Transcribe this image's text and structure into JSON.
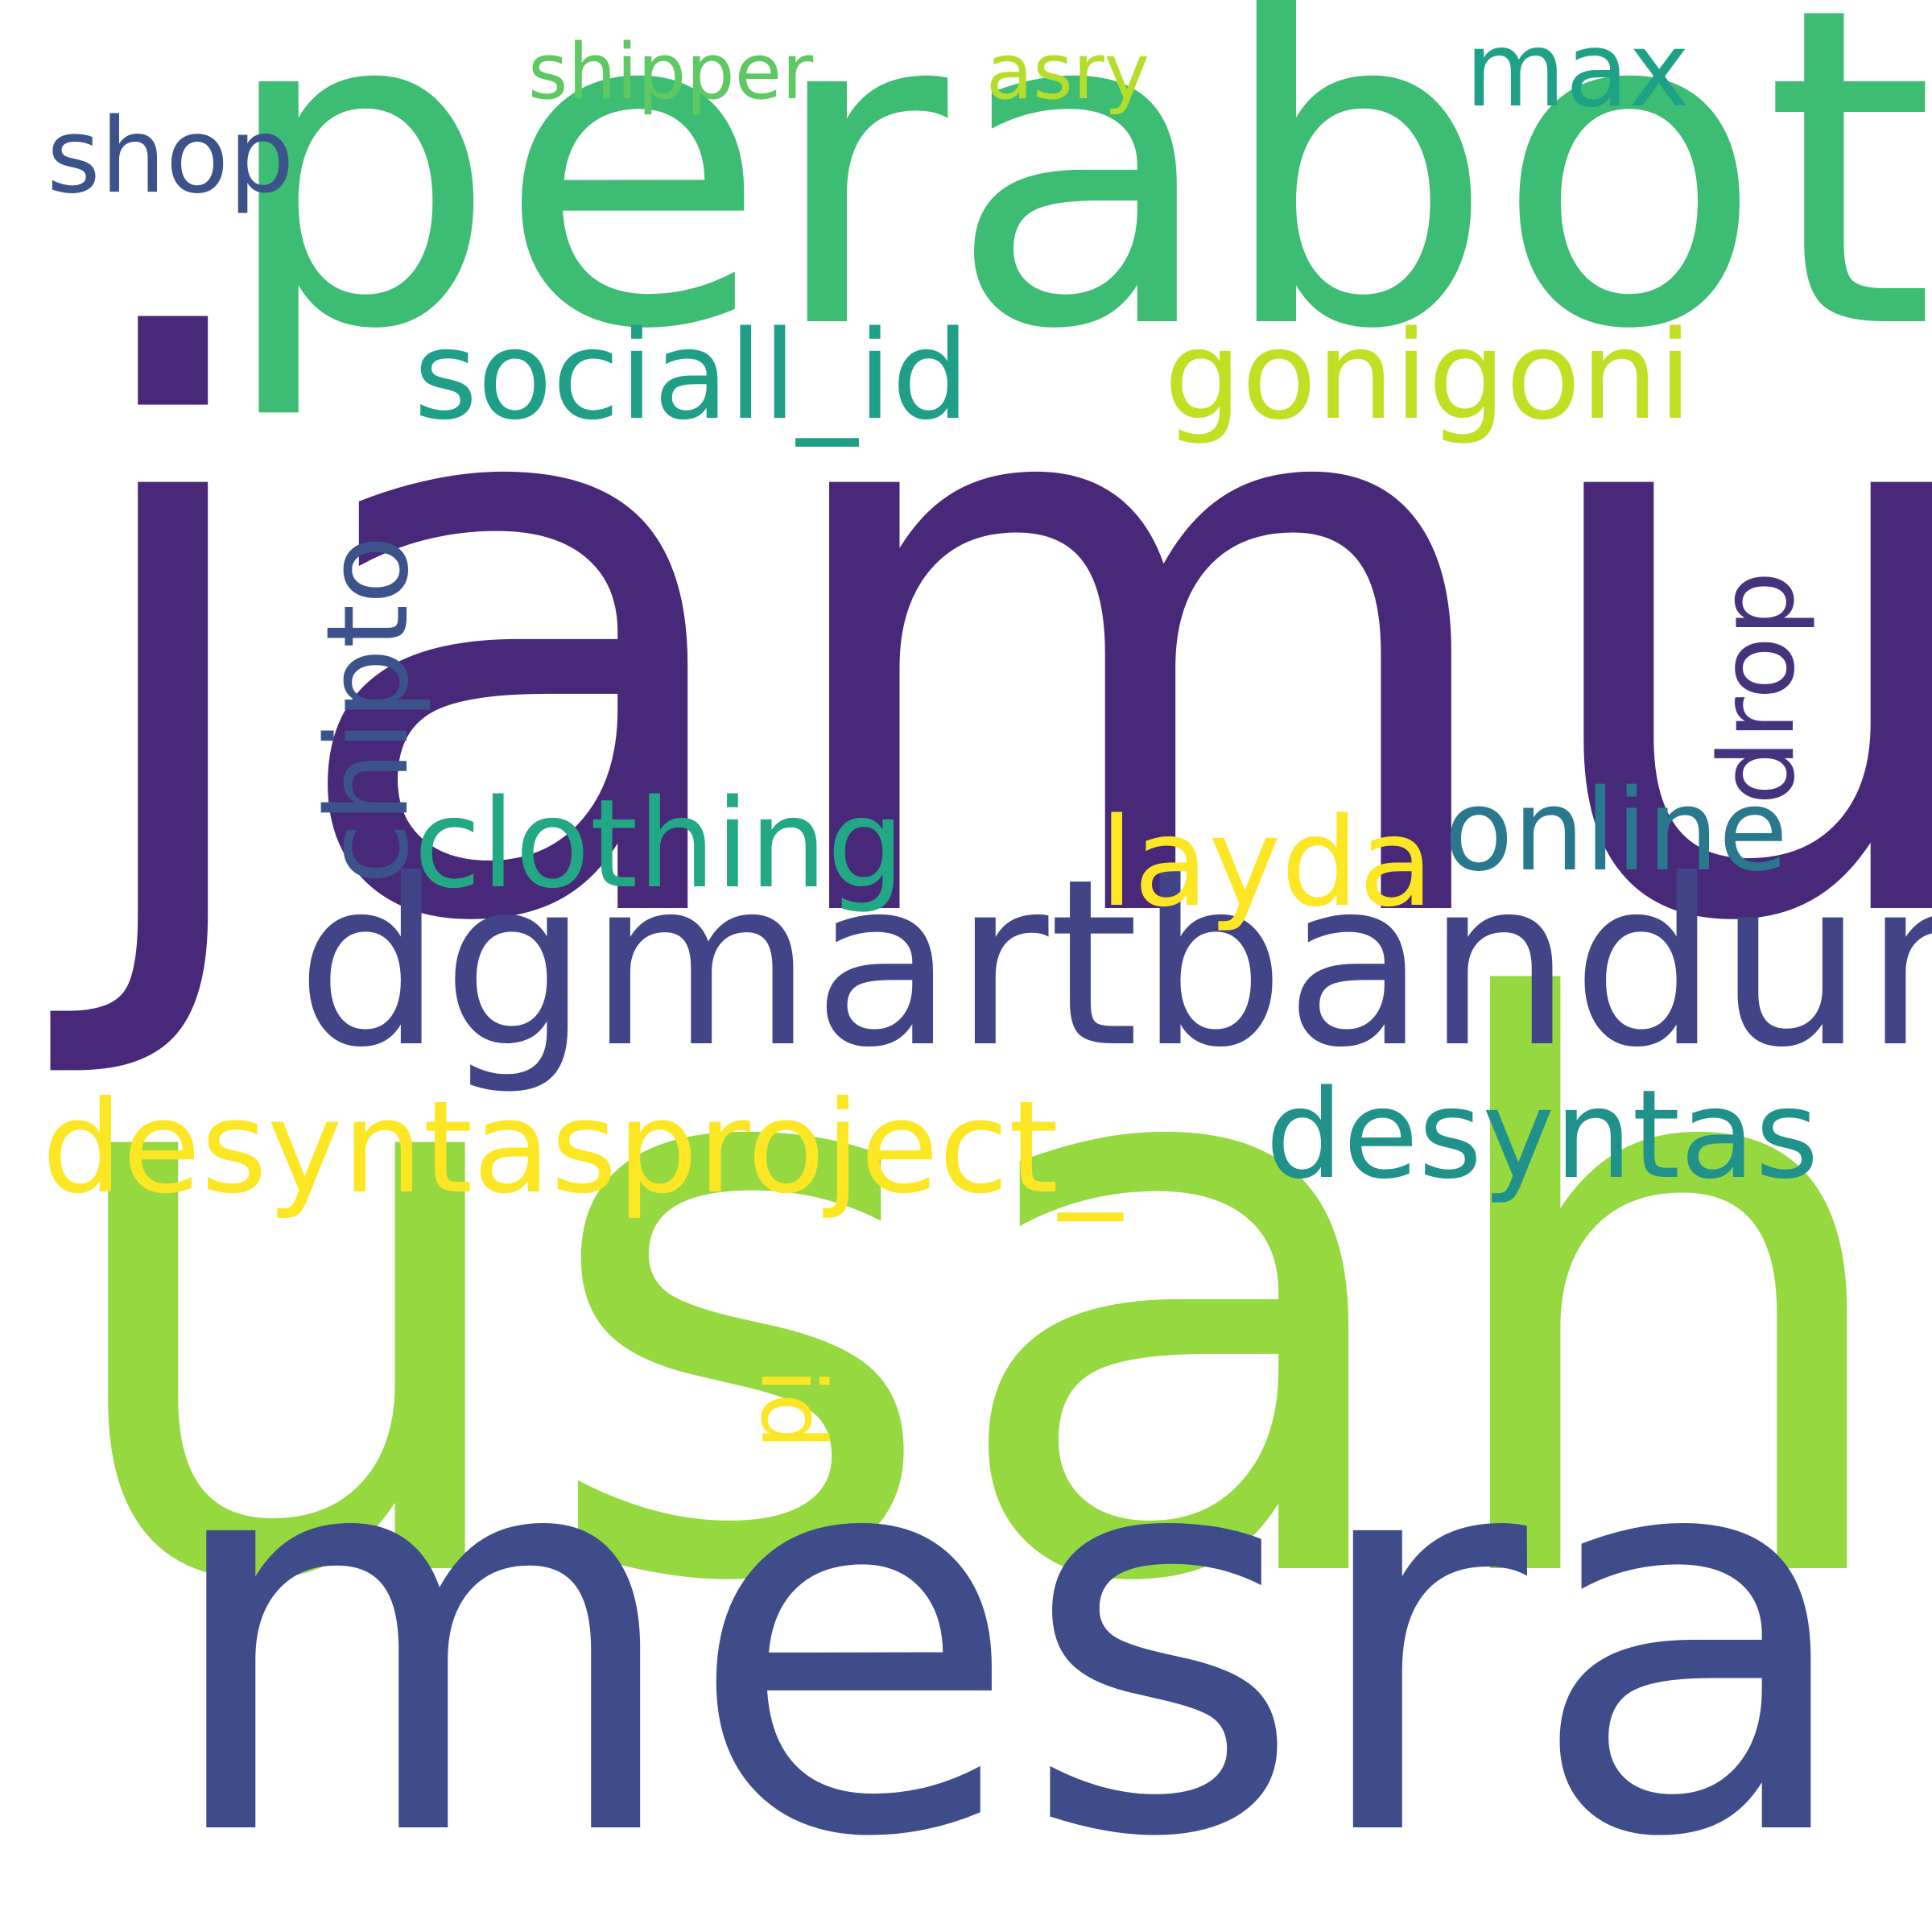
{
  "words": {
    "jamur": {
      "text": "jamur",
      "color": "#482878"
    },
    "perabot": {
      "text": "perabot",
      "color": "#3dbc74"
    },
    "usaha": {
      "text": "usaha",
      "color": "#95d840"
    },
    "mesra": {
      "text": "mesra",
      "color": "#3e4c8a"
    },
    "dgmartbandung": {
      "text": "dgmartbandung",
      "color": "#414487"
    },
    "sociall_id": {
      "text": "sociall_id",
      "color": "#1f9f88"
    },
    "gonigoni": {
      "text": "gonigoni",
      "color": "#c2df23"
    },
    "clothing": {
      "text": "clothing",
      "color": "#22a884"
    },
    "layda": {
      "text": "layda",
      "color": "#fde725"
    },
    "online": {
      "text": "online",
      "color": "#2a788e"
    },
    "desyntasproject": {
      "text": "desyntasproject_",
      "color": "#fde725"
    },
    "desyntas": {
      "text": "desyntas",
      "color": "#21918c"
    },
    "shop": {
      "text": "shop",
      "color": "#3b528b"
    },
    "max": {
      "text": "max",
      "color": "#1fa187"
    },
    "shipper": {
      "text": "shipper",
      "color": "#5ec962"
    },
    "asry": {
      "text": "asry",
      "color": "#b5de2b"
    },
    "chipto": {
      "text": "chipto",
      "color": "#3b528b"
    },
    "drop": {
      "text": "drop",
      "color": "#46337e"
    },
    "id": {
      "text": "id",
      "color": "#fde725"
    }
  }
}
